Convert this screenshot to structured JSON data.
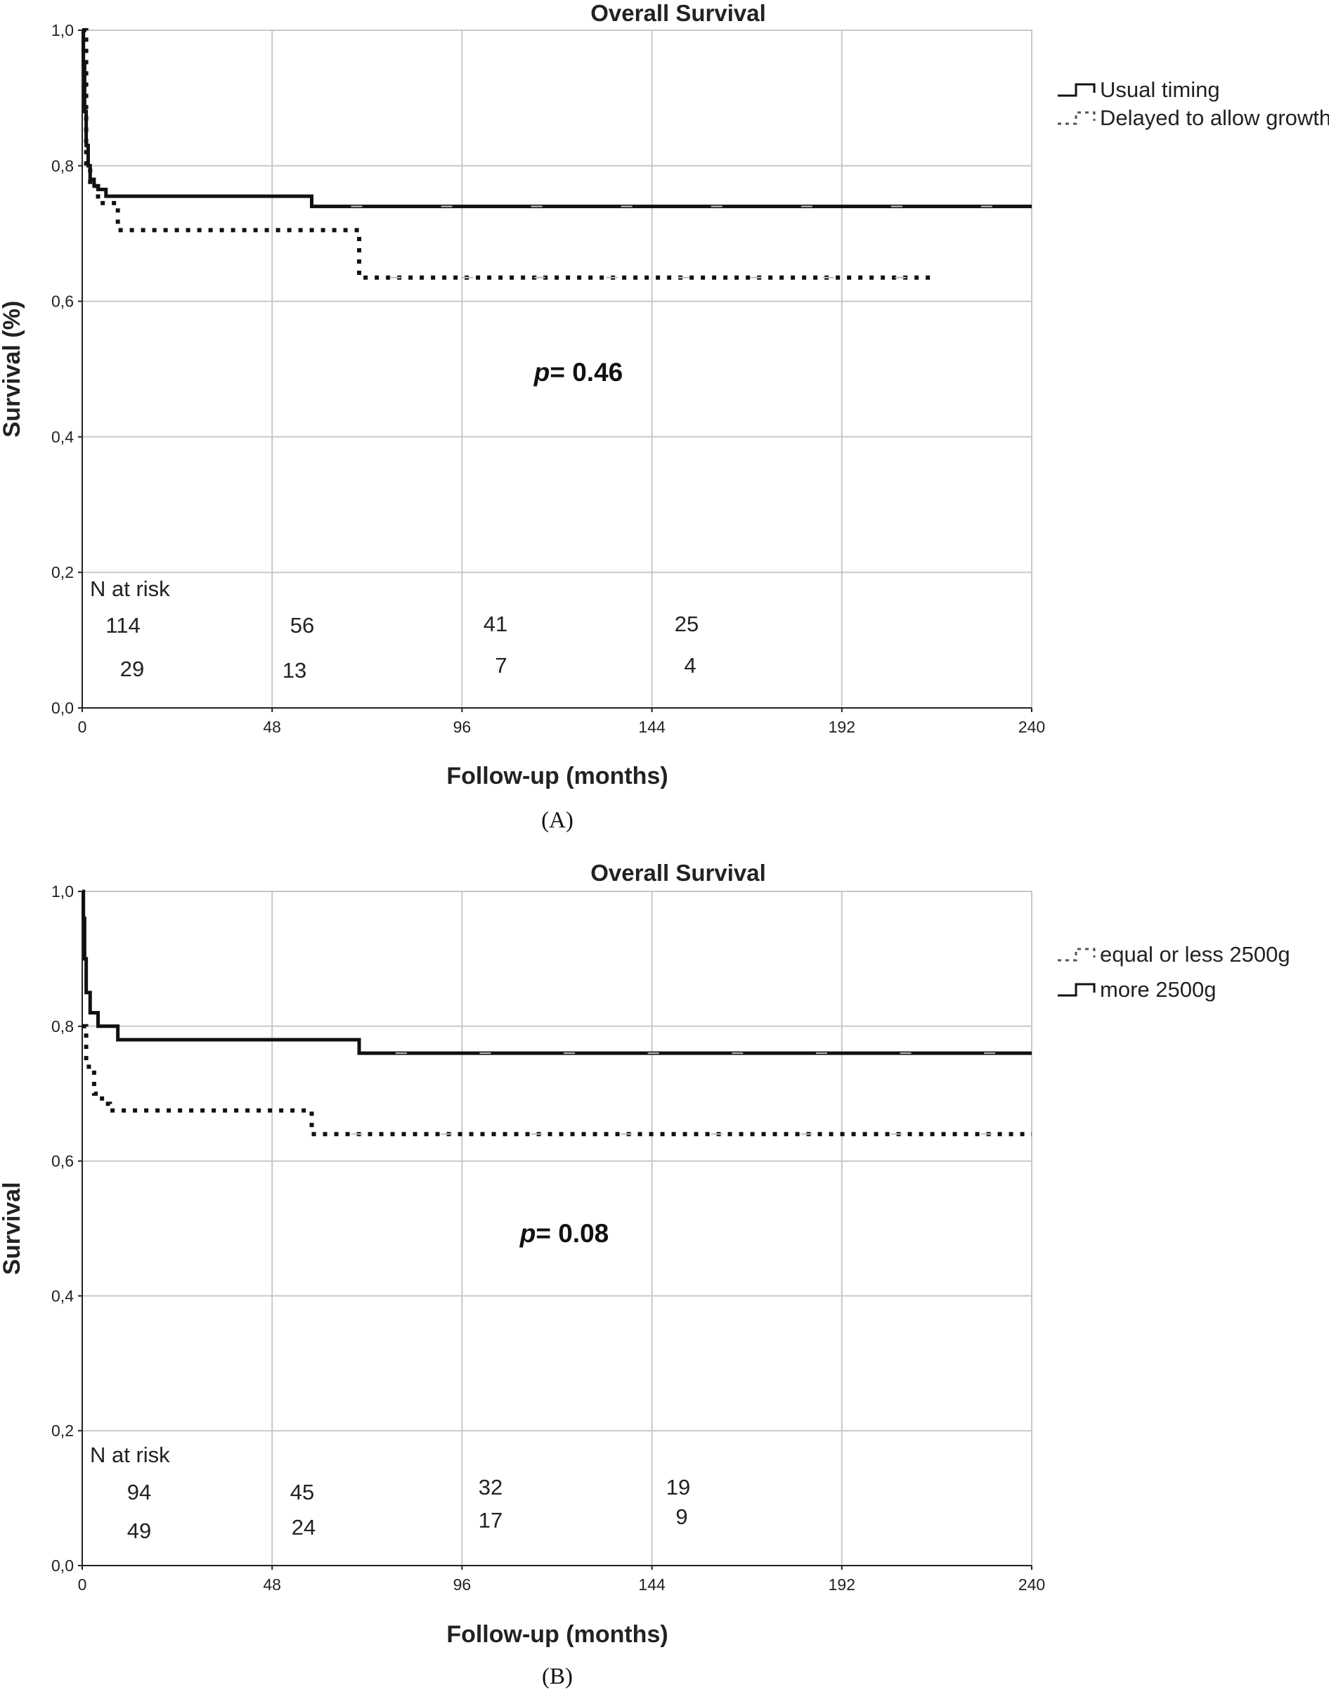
{
  "chart_data": [
    {
      "type": "line",
      "panel_label": "(A)",
      "title": "Overall Survival",
      "xlabel": "Follow-up (months)",
      "ylabel": "Survival (%)",
      "xlim": [
        0,
        240
      ],
      "ylim": [
        0.0,
        1.0
      ],
      "x_ticks": [
        "0",
        "48",
        "96",
        "144",
        "192",
        "240"
      ],
      "y_ticks": [
        "0,0",
        "0,2",
        "0,4",
        "0,6",
        "0,8",
        "1,0"
      ],
      "grid": true,
      "legend_position": "top-right",
      "p_value": {
        "prefix": "p",
        "text": "= 0.46"
      },
      "risk_table": {
        "title": "N at risk",
        "rows": [
          {
            "series": "Usual timing",
            "values": [
              "114",
              "56",
              "41",
              "25"
            ]
          },
          {
            "series": "Delayed to allow growth",
            "values": [
              "29",
              "13",
              "7",
              "4"
            ]
          }
        ]
      },
      "series": [
        {
          "name": "Usual timing",
          "style": "solid",
          "x": [
            0,
            0.3,
            0.6,
            1.0,
            1.5,
            2.0,
            3.0,
            4.0,
            6.0,
            58,
            240
          ],
          "y": [
            1.0,
            0.95,
            0.88,
            0.83,
            0.8,
            0.78,
            0.77,
            0.765,
            0.755,
            0.74,
            0.74
          ]
        },
        {
          "name": "Delayed to allow growth",
          "style": "dotted",
          "x": [
            0,
            1.0,
            2.0,
            4.0,
            9.0,
            70,
            216
          ],
          "y": [
            1.0,
            0.8,
            0.77,
            0.745,
            0.705,
            0.635,
            0.635
          ]
        }
      ]
    },
    {
      "type": "line",
      "panel_label": "(B)",
      "title": "Overall Survival",
      "xlabel": "Follow-up (months)",
      "ylabel": "Survival",
      "xlim": [
        0,
        240
      ],
      "ylim": [
        0.0,
        1.0
      ],
      "x_ticks": [
        "0",
        "48",
        "96",
        "144",
        "192",
        "240"
      ],
      "y_ticks": [
        "0,0",
        "0,2",
        "0,4",
        "0,6",
        "0,8",
        "1,0"
      ],
      "grid": true,
      "legend_position": "top-right",
      "p_value": {
        "prefix": "p",
        "text": "= 0.08"
      },
      "risk_table": {
        "title": "N at risk",
        "rows": [
          {
            "series": "more 2500g",
            "values": [
              "94",
              "45",
              "32",
              "19"
            ]
          },
          {
            "series": "equal or less 2500g",
            "values": [
              "49",
              "24",
              "17",
              "9"
            ]
          }
        ]
      },
      "series": [
        {
          "name": "equal or less 2500g",
          "style": "dotted",
          "x": [
            0,
            1.0,
            3.0,
            5.0,
            7.0,
            58,
            240
          ],
          "y": [
            0.8,
            0.74,
            0.7,
            0.685,
            0.675,
            0.64,
            0.64
          ]
        },
        {
          "name": "more 2500g",
          "style": "solid",
          "x": [
            0,
            0.3,
            0.6,
            1.0,
            2.0,
            4.0,
            9.0,
            70,
            240
          ],
          "y": [
            1.0,
            0.96,
            0.9,
            0.85,
            0.82,
            0.8,
            0.78,
            0.76,
            0.76
          ]
        }
      ]
    }
  ]
}
